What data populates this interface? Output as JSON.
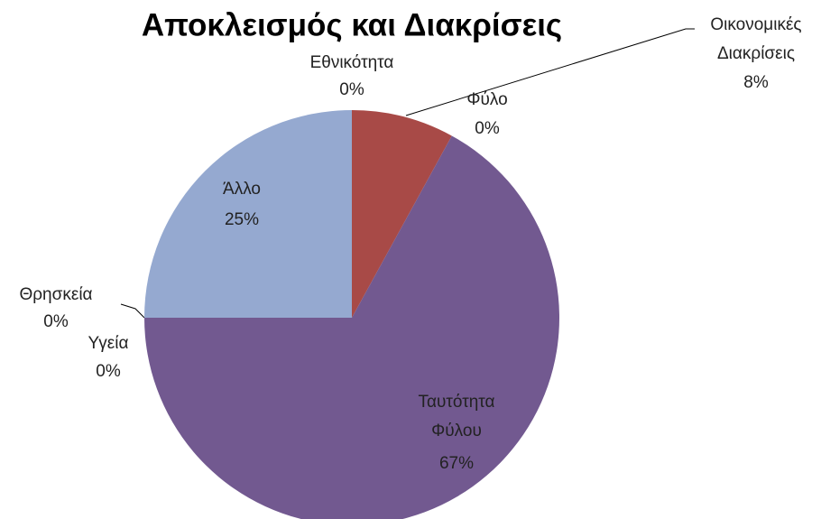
{
  "chart_data": {
    "type": "pie",
    "title": "Αποκλεισμός και Διακρίσεις",
    "categories": [
      "Εθνικότητα",
      "Οικονομικές Διακρίσεις",
      "Φύλο",
      "Ταυτότητα Φύλου",
      "Υγεία",
      "Θρησκεία",
      "Άλλο"
    ],
    "values": [
      0,
      8,
      0,
      67,
      0,
      0,
      25
    ],
    "value_labels": [
      "0%",
      "8%",
      "0%",
      "67%",
      "0%",
      "0%",
      "25%"
    ],
    "colors": [
      "#4f81bd",
      "#a84a47",
      "#9bbb59",
      "#725990",
      "#4bacc6",
      "#f79646",
      "#95a9d0"
    ]
  }
}
